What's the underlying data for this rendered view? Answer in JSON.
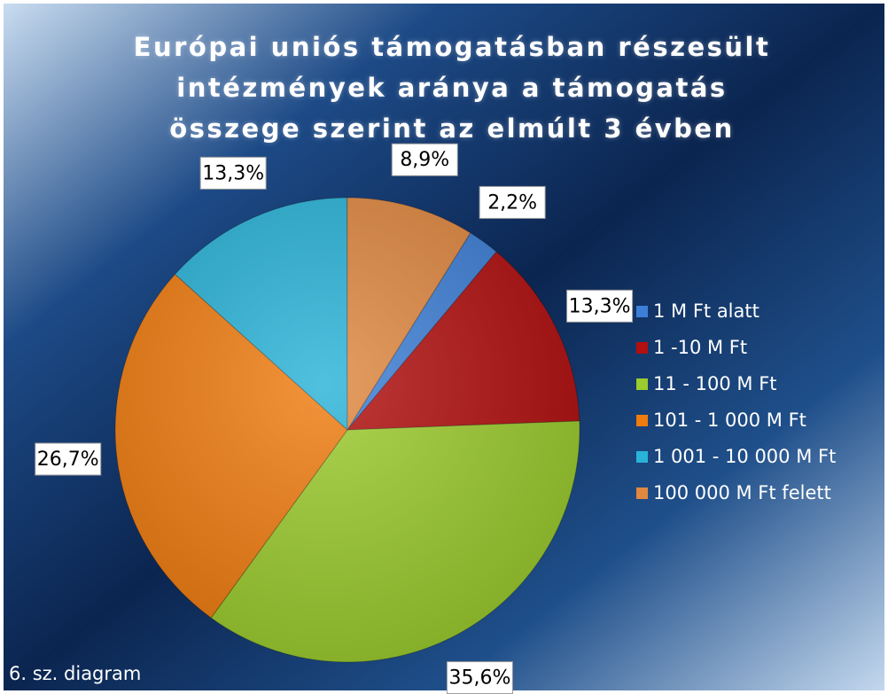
{
  "chart_data": {
    "type": "pie",
    "title": "Európai uniós támogatásban részesült intézmények aránya a támogatás összege szerint az elmúlt 3 évben",
    "caption": "6. sz. diagram",
    "categories": [
      "1 M Ft alatt",
      "1 -10 M Ft",
      "11 - 100 M Ft",
      "101 - 1 000 M Ft",
      "1 001 - 10 000 M Ft",
      "100 000 M Ft felett"
    ],
    "values": [
      2.2,
      13.3,
      35.6,
      26.7,
      13.3,
      8.9
    ],
    "value_labels": [
      "2,2%",
      "13,3%",
      "35,6%",
      "26,7%",
      "13,3%",
      "8,9%"
    ],
    "colors": [
      "#3d7fd6",
      "#b20f0f",
      "#9ccc2e",
      "#f07c10",
      "#2ab3d8",
      "#e08840"
    ],
    "legend": "right"
  }
}
